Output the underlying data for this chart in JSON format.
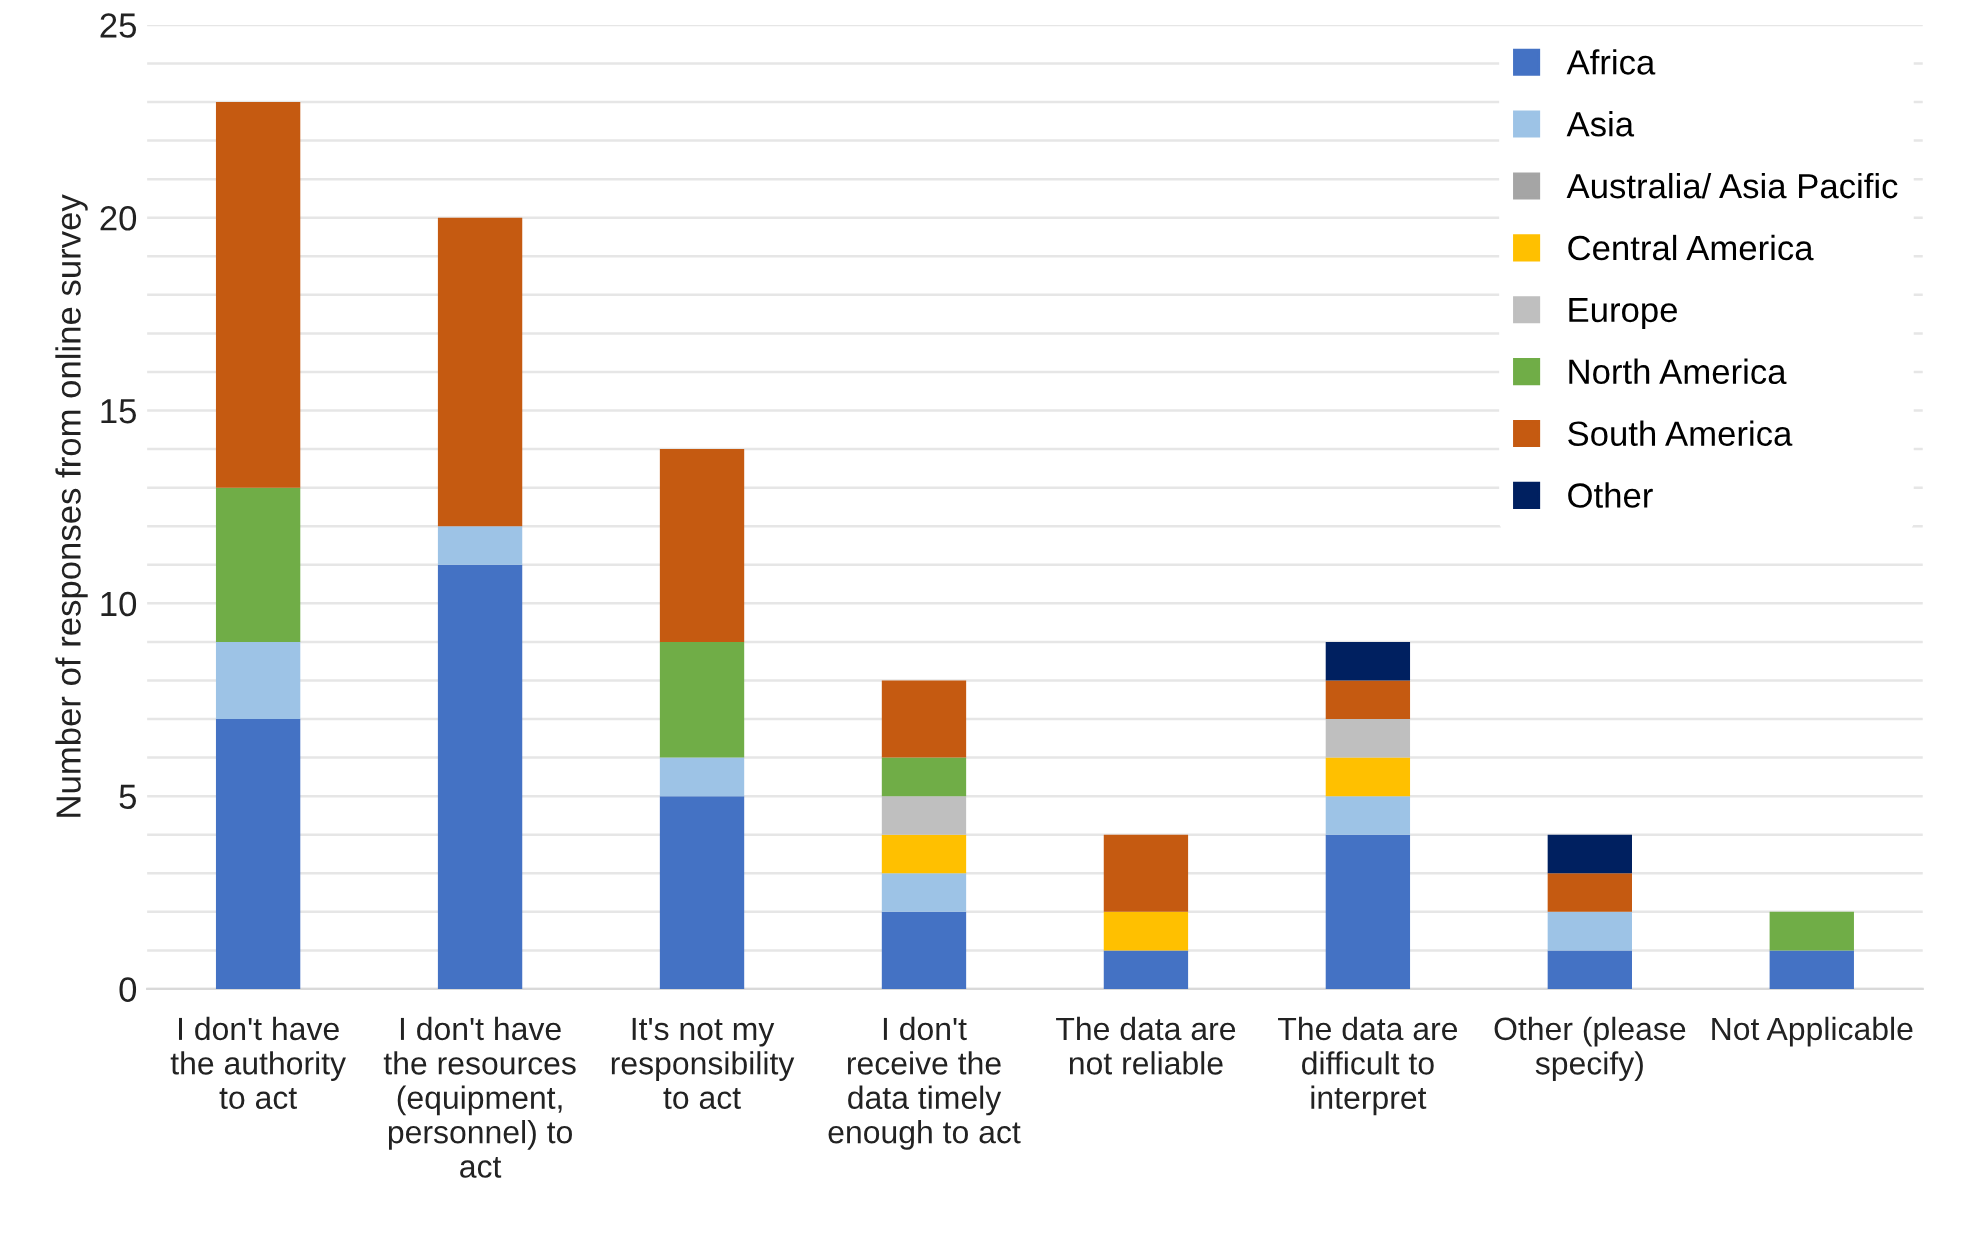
{
  "chart_data": {
    "type": "bar",
    "stacked": true,
    "ylabel": "Number of responses from online survey",
    "categories": [
      "I don't have the authority to act",
      "I don't have the resources (equipment, personnel) to act",
      "It's not my responsibility to act",
      "I don't receive the data timely enough to act",
      "The data are not reliable",
      "The data are difficult to interpret",
      "Other (please specify)",
      "Not Applicable"
    ],
    "series": [
      {
        "name": "Africa",
        "color": "#4472c4",
        "values": [
          7,
          11,
          5,
          2,
          1,
          4,
          1,
          1
        ]
      },
      {
        "name": "Asia",
        "color": "#9dc3e6",
        "values": [
          2,
          1,
          1,
          1,
          null,
          1,
          1,
          null
        ]
      },
      {
        "name": "Australia/ Asia Pacific",
        "color": "#a5a5a5",
        "values": [
          null,
          null,
          null,
          null,
          null,
          null,
          null,
          null
        ]
      },
      {
        "name": "Central America",
        "color": "#ffc000",
        "values": [
          null,
          null,
          null,
          1,
          1,
          1,
          null,
          null
        ]
      },
      {
        "name": "Europe",
        "color": "#bfbfbf",
        "values": [
          null,
          null,
          null,
          1,
          null,
          1,
          null,
          null
        ]
      },
      {
        "name": "North America",
        "color": "#70ad47",
        "values": [
          4,
          null,
          3,
          1,
          null,
          null,
          null,
          1
        ]
      },
      {
        "name": "South America",
        "color": "#c55a11",
        "values": [
          10,
          8,
          5,
          2,
          2,
          1,
          1,
          null
        ]
      },
      {
        "name": "Other",
        "color": "#002060",
        "values": [
          null,
          null,
          null,
          null,
          null,
          1,
          1,
          null
        ]
      }
    ],
    "ylim": [
      0,
      25
    ],
    "yticks": [
      0,
      {
        "value": 1,
        "label": null
      },
      {
        "value": 2,
        "label": null
      },
      {
        "value": 3,
        "label": null
      },
      {
        "value": 4,
        "label": null
      },
      5,
      {
        "value": 6,
        "label": null
      },
      {
        "value": 7,
        "label": null
      },
      {
        "value": 8,
        "label": null
      },
      {
        "value": 9,
        "label": null
      },
      10,
      {
        "value": 11,
        "label": null
      },
      {
        "value": 12,
        "label": null
      },
      {
        "value": 13,
        "label": null
      },
      {
        "value": 14,
        "label": null
      },
      15,
      {
        "value": 16,
        "label": null
      },
      {
        "value": 17,
        "label": null
      },
      {
        "value": 18,
        "label": null
      },
      {
        "value": 19,
        "label": null
      },
      20,
      {
        "value": 21,
        "label": null
      },
      {
        "value": 22,
        "label": null
      },
      {
        "value": 23,
        "label": null
      },
      {
        "value": 24,
        "label": null
      },
      25
    ],
    "grid": "y",
    "legend": "right"
  }
}
